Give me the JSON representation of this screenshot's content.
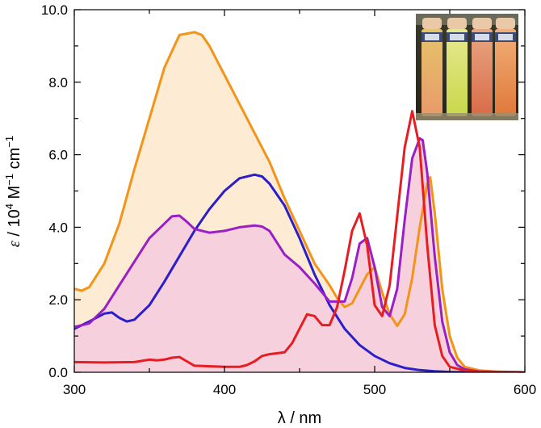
{
  "chart_data": {
    "type": "line",
    "xlabel": "λ / nm",
    "ylabel": {
      "symbol": "ε",
      "rest": " / 10",
      "exp1": "4",
      "unit1": " M",
      "exp2": "−1",
      "unit2": " cm",
      "exp3": "−1"
    },
    "xlim": [
      300,
      600
    ],
    "ylim": [
      0,
      10
    ],
    "xticks": [
      300,
      400,
      500,
      600
    ],
    "xtick_labels": [
      "300",
      "400",
      "500",
      "600"
    ],
    "yticks": [
      0,
      2,
      4,
      6,
      8,
      10
    ],
    "ytick_labels": [
      "0.0",
      "2.0",
      "4.0",
      "6.0",
      "8.0",
      "10.0"
    ],
    "grid": false,
    "legend": null,
    "inset": "photograph of four vials with coloured solutions (yellow-orange, yellow-green, red-orange, orange)",
    "fills": [
      {
        "series": "orange",
        "color": "#fdebd3"
      },
      {
        "series": "purple",
        "color": "#f7d0de"
      }
    ],
    "series": [
      {
        "key": "orange",
        "color": "#f39419",
        "x": [
          300,
          305,
          310,
          320,
          330,
          340,
          350,
          360,
          370,
          380,
          385,
          390,
          400,
          410,
          420,
          430,
          440,
          450,
          460,
          470,
          475,
          480,
          485,
          490,
          495,
          500,
          505,
          510,
          515,
          520,
          525,
          530,
          535,
          537,
          540,
          545,
          550,
          555,
          560,
          570,
          580,
          600
        ],
        "y": [
          2.3,
          2.25,
          2.35,
          3.0,
          4.1,
          5.6,
          7.0,
          8.4,
          9.3,
          9.38,
          9.3,
          9.0,
          8.2,
          7.4,
          6.6,
          5.8,
          4.8,
          3.9,
          3.0,
          2.4,
          2.05,
          1.8,
          1.9,
          2.3,
          2.7,
          2.9,
          2.2,
          1.6,
          1.28,
          1.6,
          2.6,
          4.0,
          5.2,
          5.38,
          4.4,
          2.3,
          1.0,
          0.4,
          0.15,
          0.05,
          0.02,
          0.0
        ]
      },
      {
        "key": "blue",
        "color": "#2b1fc9",
        "x": [
          300,
          310,
          320,
          325,
          330,
          335,
          340,
          350,
          360,
          370,
          380,
          390,
          400,
          410,
          420,
          425,
          430,
          440,
          450,
          460,
          470,
          480,
          490,
          500,
          510,
          520,
          530,
          540,
          550,
          600
        ],
        "y": [
          1.2,
          1.4,
          1.62,
          1.65,
          1.5,
          1.4,
          1.45,
          1.85,
          2.5,
          3.2,
          3.9,
          4.5,
          5.0,
          5.35,
          5.45,
          5.4,
          5.2,
          4.6,
          3.7,
          2.7,
          1.85,
          1.2,
          0.75,
          0.45,
          0.25,
          0.12,
          0.06,
          0.03,
          0.01,
          0.0
        ]
      },
      {
        "key": "purple",
        "color": "#9a1fc4",
        "x": [
          300,
          310,
          320,
          330,
          340,
          350,
          360,
          365,
          370,
          375,
          380,
          390,
          400,
          410,
          420,
          425,
          430,
          440,
          450,
          460,
          470,
          480,
          485,
          490,
          495,
          500,
          505,
          510,
          515,
          520,
          525,
          530,
          532,
          535,
          540,
          545,
          550,
          555,
          560,
          570,
          600
        ],
        "y": [
          1.25,
          1.35,
          1.75,
          2.4,
          3.05,
          3.7,
          4.1,
          4.3,
          4.32,
          4.15,
          3.95,
          3.85,
          3.9,
          4.0,
          4.05,
          4.02,
          3.9,
          3.25,
          2.9,
          2.45,
          1.95,
          1.95,
          2.6,
          3.55,
          3.7,
          2.9,
          1.8,
          1.55,
          2.3,
          4.2,
          5.9,
          6.45,
          6.4,
          5.5,
          3.2,
          1.4,
          0.55,
          0.2,
          0.08,
          0.02,
          0.0
        ]
      },
      {
        "key": "red",
        "color": "#e81d22",
        "x": [
          300,
          320,
          340,
          350,
          355,
          360,
          365,
          370,
          375,
          380,
          400,
          410,
          415,
          420,
          425,
          430,
          440,
          445,
          450,
          455,
          460,
          465,
          470,
          475,
          480,
          485,
          490,
          495,
          500,
          505,
          510,
          515,
          520,
          525,
          530,
          535,
          540,
          545,
          550,
          560,
          570,
          600
        ],
        "y": [
          0.28,
          0.27,
          0.28,
          0.35,
          0.33,
          0.35,
          0.4,
          0.42,
          0.3,
          0.18,
          0.15,
          0.15,
          0.2,
          0.3,
          0.45,
          0.5,
          0.55,
          0.8,
          1.2,
          1.6,
          1.55,
          1.3,
          1.3,
          1.8,
          2.8,
          3.9,
          4.38,
          3.5,
          1.85,
          1.55,
          2.4,
          4.3,
          6.2,
          7.2,
          6.2,
          3.5,
          1.3,
          0.45,
          0.15,
          0.05,
          0.02,
          0.0
        ]
      }
    ]
  }
}
